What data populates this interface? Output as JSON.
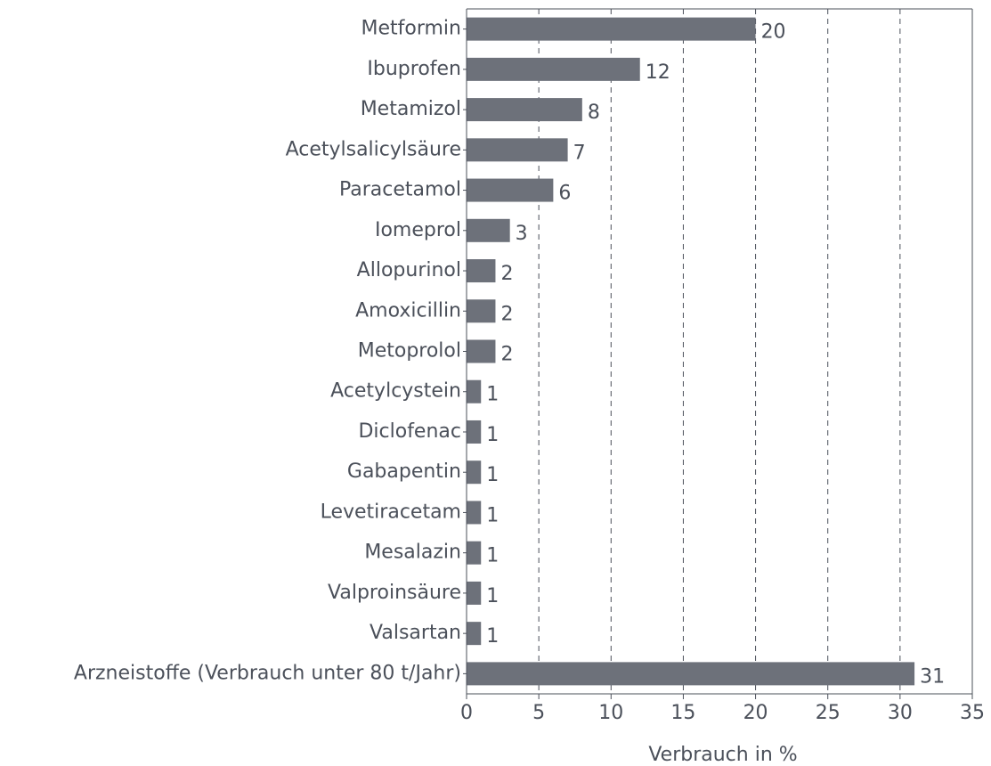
{
  "chart_data": {
    "type": "bar",
    "orientation": "horizontal",
    "x_label": "Verbrauch in %",
    "categories": [
      "Metformin",
      "Ibuprofen",
      "Metamizol",
      "Acetylsalicylsäure",
      "Paracetamol",
      "Iomeprol",
      "Allopurinol",
      "Amoxicillin",
      "Metoprolol",
      "Acetylcystein",
      "Diclofenac",
      "Gabapentin",
      "Levetiracetam",
      "Mesalazin",
      "Valproinsäure",
      "Valsartan",
      "Arzneistoffe (Verbrauch unter 80 t/Jahr)"
    ],
    "values": [
      20,
      12,
      8,
      7,
      6,
      3,
      2,
      2,
      2,
      1,
      1,
      1,
      1,
      1,
      1,
      1,
      31
    ],
    "color": "#6d717a",
    "xlim": [
      0,
      35
    ],
    "xticks": [
      0,
      5,
      10,
      15,
      20,
      25,
      30,
      35
    ],
    "grid": true
  }
}
